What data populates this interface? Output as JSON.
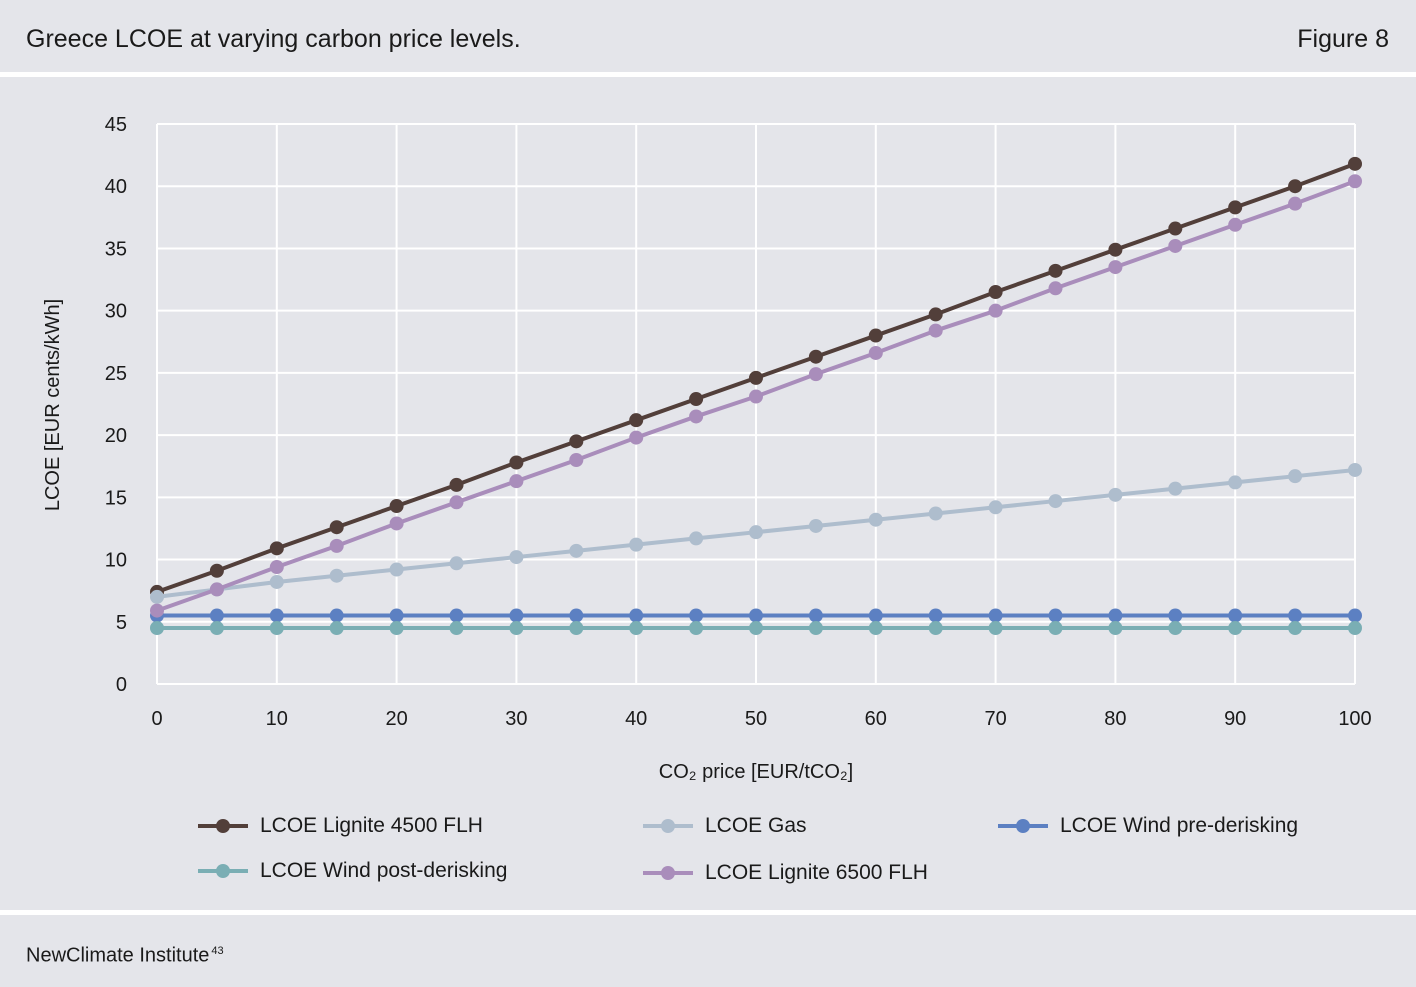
{
  "header": {
    "title": "Greece LCOE at varying carbon price levels.",
    "figure_label": "Figure 8"
  },
  "footer": {
    "source": "NewClimate Institute",
    "footnote": "43"
  },
  "colors": {
    "background": "#e4e5ea",
    "grid": "#ffffff",
    "lignite_4500": "#523f3a",
    "gas": "#aebdcd",
    "wind_pre": "#5c80c2",
    "wind_post": "#7aaeb4",
    "lignite_6500": "#a98dbb"
  },
  "chart_data": {
    "type": "line",
    "title": "Greece LCOE at varying carbon price levels.",
    "xlabel": "CO₂ price [EUR/tCO₂]",
    "ylabel": "LCOE  [EUR cents/kWh]",
    "x": [
      0,
      5,
      10,
      15,
      20,
      25,
      30,
      35,
      40,
      45,
      50,
      55,
      60,
      65,
      70,
      75,
      80,
      85,
      90,
      95,
      100
    ],
    "xlim": [
      0,
      100
    ],
    "ylim": [
      0,
      45
    ],
    "xticks": [
      "0",
      "10",
      "20",
      "30",
      "40",
      "50",
      "60",
      "70",
      "80",
      "90",
      "100"
    ],
    "yticks": [
      "0",
      "5",
      "10",
      "15",
      "20",
      "25",
      "30",
      "35",
      "40",
      "45"
    ],
    "grid": true,
    "legend_position": "bottom",
    "series": [
      {
        "name": "LCOE Lignite 4500 FLH",
        "color": "#523f3a",
        "values": [
          7.4,
          9.1,
          10.9,
          12.6,
          14.3,
          16.0,
          17.8,
          19.5,
          21.2,
          22.9,
          24.6,
          26.3,
          28.0,
          29.7,
          31.5,
          33.2,
          34.9,
          36.6,
          38.3,
          40.0,
          41.8
        ]
      },
      {
        "name": "LCOE Gas",
        "color": "#aebdcd",
        "values": [
          7.0,
          7.6,
          8.2,
          8.7,
          9.2,
          9.7,
          10.2,
          10.7,
          11.2,
          11.7,
          12.2,
          12.7,
          13.2,
          13.7,
          14.2,
          14.7,
          15.2,
          15.7,
          16.2,
          16.7,
          17.2
        ]
      },
      {
        "name": "LCOE Wind pre-derisking",
        "color": "#5c80c2",
        "values": [
          5.5,
          5.5,
          5.5,
          5.5,
          5.5,
          5.5,
          5.5,
          5.5,
          5.5,
          5.5,
          5.5,
          5.5,
          5.5,
          5.5,
          5.5,
          5.5,
          5.5,
          5.5,
          5.5,
          5.5,
          5.5
        ]
      },
      {
        "name": "LCOE Wind post-derisking",
        "color": "#7aaeb4",
        "values": [
          4.5,
          4.5,
          4.5,
          4.5,
          4.5,
          4.5,
          4.5,
          4.5,
          4.5,
          4.5,
          4.5,
          4.5,
          4.5,
          4.5,
          4.5,
          4.5,
          4.5,
          4.5,
          4.5,
          4.5,
          4.5
        ]
      },
      {
        "name": "LCOE Lignite 6500 FLH",
        "color": "#a98dbb",
        "values": [
          5.9,
          7.6,
          9.4,
          11.1,
          12.9,
          14.6,
          16.3,
          18.0,
          19.8,
          21.5,
          23.1,
          24.9,
          26.6,
          28.4,
          30.0,
          31.8,
          33.5,
          35.2,
          36.9,
          38.6,
          40.4
        ]
      }
    ]
  }
}
